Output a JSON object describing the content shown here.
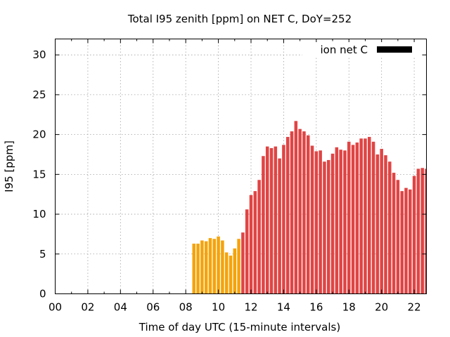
{
  "chart_data": {
    "type": "bar",
    "title": "Total I95 zenith [ppm] on NET C, DoY=252",
    "xlabel": "Time of day UTC (15-minute intervals)",
    "ylabel": "I95 [ppm]",
    "xlim": [
      0,
      22.75
    ],
    "ylim": [
      0,
      32
    ],
    "x_ticks": [
      0,
      2,
      4,
      6,
      8,
      10,
      12,
      14,
      16,
      18,
      20,
      22
    ],
    "x_tick_labels": [
      "00",
      "02",
      "04",
      "06",
      "08",
      "10",
      "12",
      "14",
      "16",
      "18",
      "20",
      "22"
    ],
    "y_ticks": [
      0,
      5,
      10,
      15,
      20,
      25,
      30
    ],
    "y_tick_labels": [
      "0",
      "5",
      "10",
      "15",
      "20",
      "25",
      "30"
    ],
    "grid": true,
    "legend": {
      "label": "ion net C",
      "placement": "top-right",
      "swatch_color": "#000000"
    },
    "colors": {
      "low": "#f5a30a",
      "high": "#e04444"
    },
    "bar_interval_hours": 0.25,
    "series": [
      {
        "name": "ion net C",
        "x": [
          8.5,
          8.75,
          9.0,
          9.25,
          9.5,
          9.75,
          10.0,
          10.25,
          10.5,
          10.75,
          11.0,
          11.25,
          11.5,
          11.75,
          12.0,
          12.25,
          12.5,
          12.75,
          13.0,
          13.25,
          13.5,
          13.75,
          14.0,
          14.25,
          14.5,
          14.75,
          15.0,
          15.25,
          15.5,
          15.75,
          16.0,
          16.25,
          16.5,
          16.75,
          17.0,
          17.25,
          17.5,
          17.75,
          18.0,
          18.25,
          18.5,
          18.75,
          19.0,
          19.25,
          19.5,
          19.75,
          20.0,
          20.25,
          20.5,
          20.75,
          21.0,
          21.25,
          21.5,
          21.75,
          22.0,
          22.25,
          22.5,
          22.75
        ],
        "values": [
          6.3,
          6.3,
          6.7,
          6.6,
          7.0,
          6.9,
          7.2,
          6.7,
          5.2,
          4.8,
          5.7,
          6.9,
          7.7,
          10.6,
          12.4,
          12.9,
          14.3,
          17.3,
          18.5,
          18.3,
          18.5,
          17.0,
          18.7,
          19.7,
          20.4,
          21.7,
          20.7,
          20.4,
          19.9,
          18.6,
          17.9,
          18.0,
          16.6,
          16.8,
          17.6,
          18.4,
          18.1,
          18.0,
          19.1,
          18.7,
          19.0,
          19.5,
          19.5,
          19.7,
          19.1,
          17.5,
          18.2,
          17.4,
          16.6,
          15.2,
          14.3,
          12.9,
          13.3,
          13.1,
          14.8,
          15.7,
          15.8,
          15.7
        ]
      }
    ],
    "low_color_until_x": 11.5
  }
}
